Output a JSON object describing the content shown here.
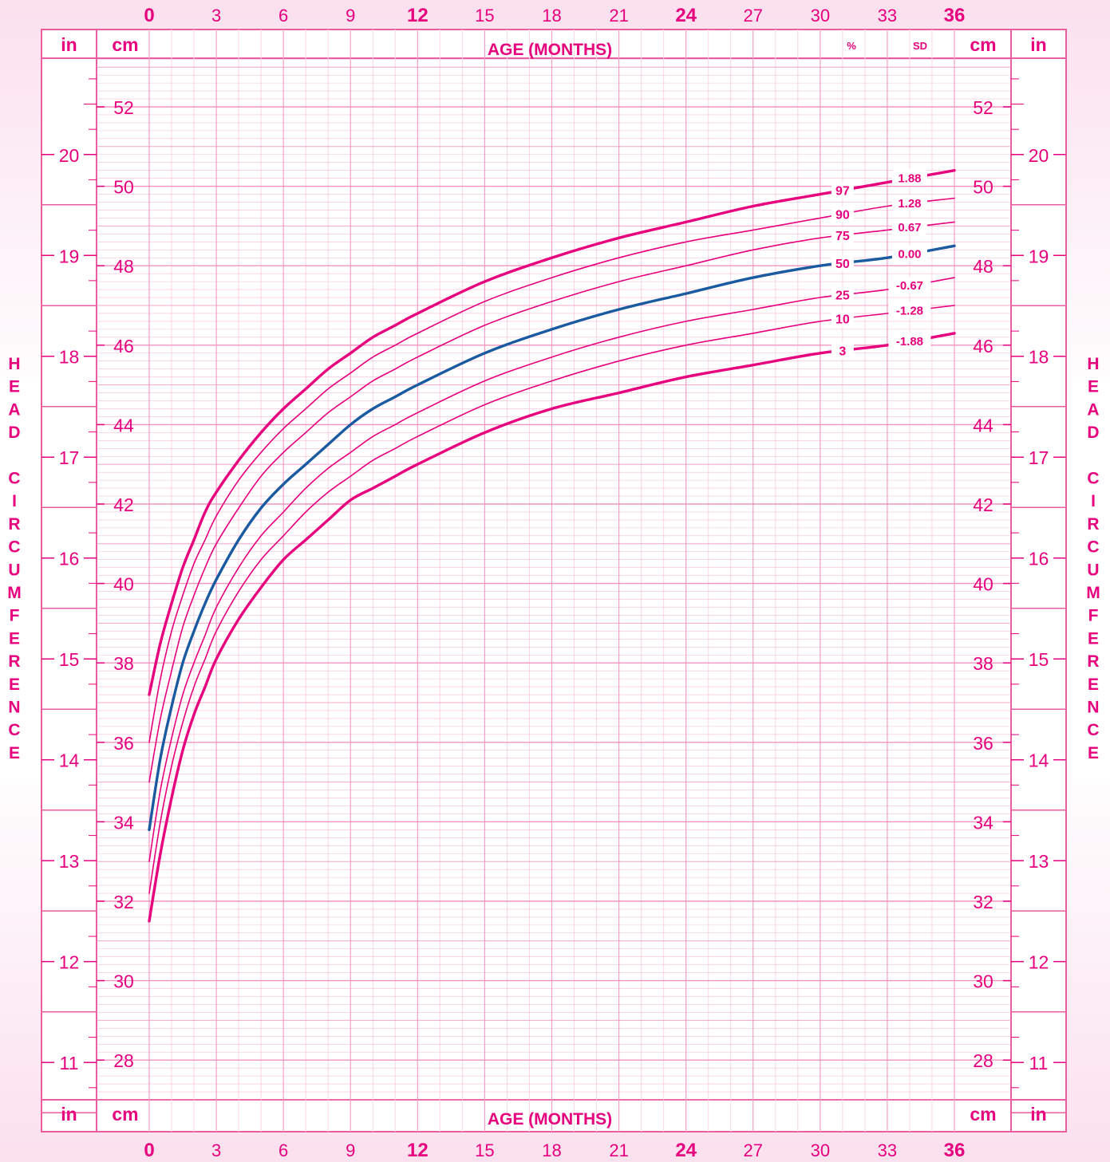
{
  "chart_data": {
    "type": "line",
    "xlabel": "AGE (MONTHS)",
    "ylabel": "HEAD CIRCUMFERENCE",
    "x_ticks": [
      0,
      3,
      6,
      9,
      12,
      15,
      18,
      21,
      24,
      27,
      30,
      33,
      36
    ],
    "x_tick_bold": [
      0,
      12,
      24,
      36
    ],
    "xlim": [
      0,
      36
    ],
    "ylim_cm": [
      26.9,
      53.9
    ],
    "y_ticks_cm": [
      28,
      30,
      32,
      34,
      36,
      38,
      40,
      42,
      44,
      46,
      48,
      50,
      52
    ],
    "y_ticks_in": [
      11,
      12,
      13,
      14,
      15,
      16,
      17,
      18,
      19,
      20
    ],
    "unit_labels": {
      "in": "in",
      "cm": "cm"
    },
    "percentile_header": "%",
    "sd_header": "SD",
    "grid": true,
    "colors": {
      "percentile": "#e6007e",
      "median": "#1a5aa0",
      "grid": "#f08ab8",
      "background_tint": "#fde7f1"
    },
    "series": [
      {
        "name": "97",
        "sd": "1.88",
        "bold": true,
        "x": [
          0,
          0.5,
          1,
          1.5,
          2,
          2.5,
          3,
          4,
          5,
          6,
          7,
          8,
          9,
          10,
          11,
          12,
          15,
          18,
          21,
          24,
          27,
          30,
          33,
          36
        ],
        "y": [
          37.2,
          38.5,
          39.5,
          40.4,
          41.1,
          41.8,
          42.3,
          43.1,
          43.8,
          44.4,
          44.9,
          45.4,
          45.8,
          46.2,
          46.5,
          46.8,
          47.6,
          48.2,
          48.7,
          49.1,
          49.5,
          49.8,
          50.1,
          50.4
        ]
      },
      {
        "name": "90",
        "sd": "1.28",
        "bold": false,
        "x": [
          0,
          0.5,
          1,
          1.5,
          2,
          2.5,
          3,
          4,
          5,
          6,
          7,
          8,
          9,
          10,
          11,
          12,
          15,
          18,
          21,
          24,
          27,
          30,
          33,
          36
        ],
        "y": [
          36.0,
          37.6,
          38.8,
          39.7,
          40.5,
          41.1,
          41.7,
          42.6,
          43.3,
          43.9,
          44.4,
          44.9,
          45.3,
          45.7,
          46.0,
          46.3,
          47.1,
          47.7,
          48.2,
          48.6,
          48.9,
          49.2,
          49.5,
          49.7
        ]
      },
      {
        "name": "75",
        "sd": "0.67",
        "bold": false,
        "x": [
          0,
          0.5,
          1,
          1.5,
          2,
          2.5,
          3,
          4,
          5,
          6,
          7,
          8,
          9,
          10,
          11,
          12,
          15,
          18,
          21,
          24,
          27,
          30,
          33,
          36
        ],
        "y": [
          35.0,
          36.6,
          37.8,
          38.9,
          39.7,
          40.4,
          41.0,
          41.9,
          42.7,
          43.3,
          43.8,
          44.3,
          44.7,
          45.1,
          45.4,
          45.7,
          46.5,
          47.1,
          47.6,
          48.0,
          48.4,
          48.7,
          48.9,
          49.1
        ]
      },
      {
        "name": "50",
        "sd": "0.00",
        "bold": true,
        "median": true,
        "x": [
          0,
          0.5,
          1,
          1.5,
          2,
          2.5,
          3,
          4,
          5,
          6,
          7,
          8,
          9,
          10,
          11,
          12,
          15,
          18,
          21,
          24,
          27,
          30,
          33,
          36
        ],
        "y": [
          33.8,
          35.6,
          36.9,
          38.0,
          38.8,
          39.5,
          40.1,
          41.1,
          41.9,
          42.5,
          43.0,
          43.5,
          44.0,
          44.4,
          44.7,
          45.0,
          45.8,
          46.4,
          46.9,
          47.3,
          47.7,
          48.0,
          48.2,
          48.5
        ]
      },
      {
        "name": "25",
        "sd": "-0.67",
        "bold": false,
        "x": [
          0,
          0.5,
          1,
          1.5,
          2,
          2.5,
          3,
          4,
          5,
          6,
          7,
          8,
          9,
          10,
          11,
          12,
          15,
          18,
          21,
          24,
          27,
          30,
          33,
          36
        ],
        "y": [
          33.0,
          34.8,
          36.1,
          37.2,
          38.0,
          38.7,
          39.4,
          40.4,
          41.2,
          41.8,
          42.4,
          42.9,
          43.3,
          43.7,
          44.0,
          44.3,
          45.1,
          45.7,
          46.2,
          46.6,
          46.9,
          47.2,
          47.4,
          47.7
        ]
      },
      {
        "name": "10",
        "sd": "-1.28",
        "bold": false,
        "x": [
          0,
          0.5,
          1,
          1.5,
          2,
          2.5,
          3,
          4,
          5,
          6,
          7,
          8,
          9,
          10,
          11,
          12,
          15,
          18,
          21,
          24,
          27,
          30,
          33,
          36
        ],
        "y": [
          32.2,
          34.0,
          35.4,
          36.5,
          37.4,
          38.1,
          38.8,
          39.8,
          40.6,
          41.2,
          41.8,
          42.3,
          42.7,
          43.1,
          43.4,
          43.7,
          44.5,
          45.1,
          45.6,
          46.0,
          46.3,
          46.6,
          46.8,
          47.0
        ]
      },
      {
        "name": "3",
        "sd": "-1.88",
        "bold": true,
        "x": [
          0,
          0.5,
          1,
          1.5,
          2,
          2.5,
          3,
          4,
          5,
          6,
          7,
          8,
          9,
          10,
          11,
          12,
          15,
          18,
          21,
          24,
          27,
          30,
          33,
          36
        ],
        "y": [
          31.5,
          33.2,
          34.6,
          35.8,
          36.7,
          37.4,
          38.1,
          39.1,
          39.9,
          40.6,
          41.1,
          41.6,
          42.1,
          42.4,
          42.7,
          43.0,
          43.8,
          44.4,
          44.8,
          45.2,
          45.5,
          45.8,
          46.0,
          46.3
        ]
      }
    ]
  }
}
